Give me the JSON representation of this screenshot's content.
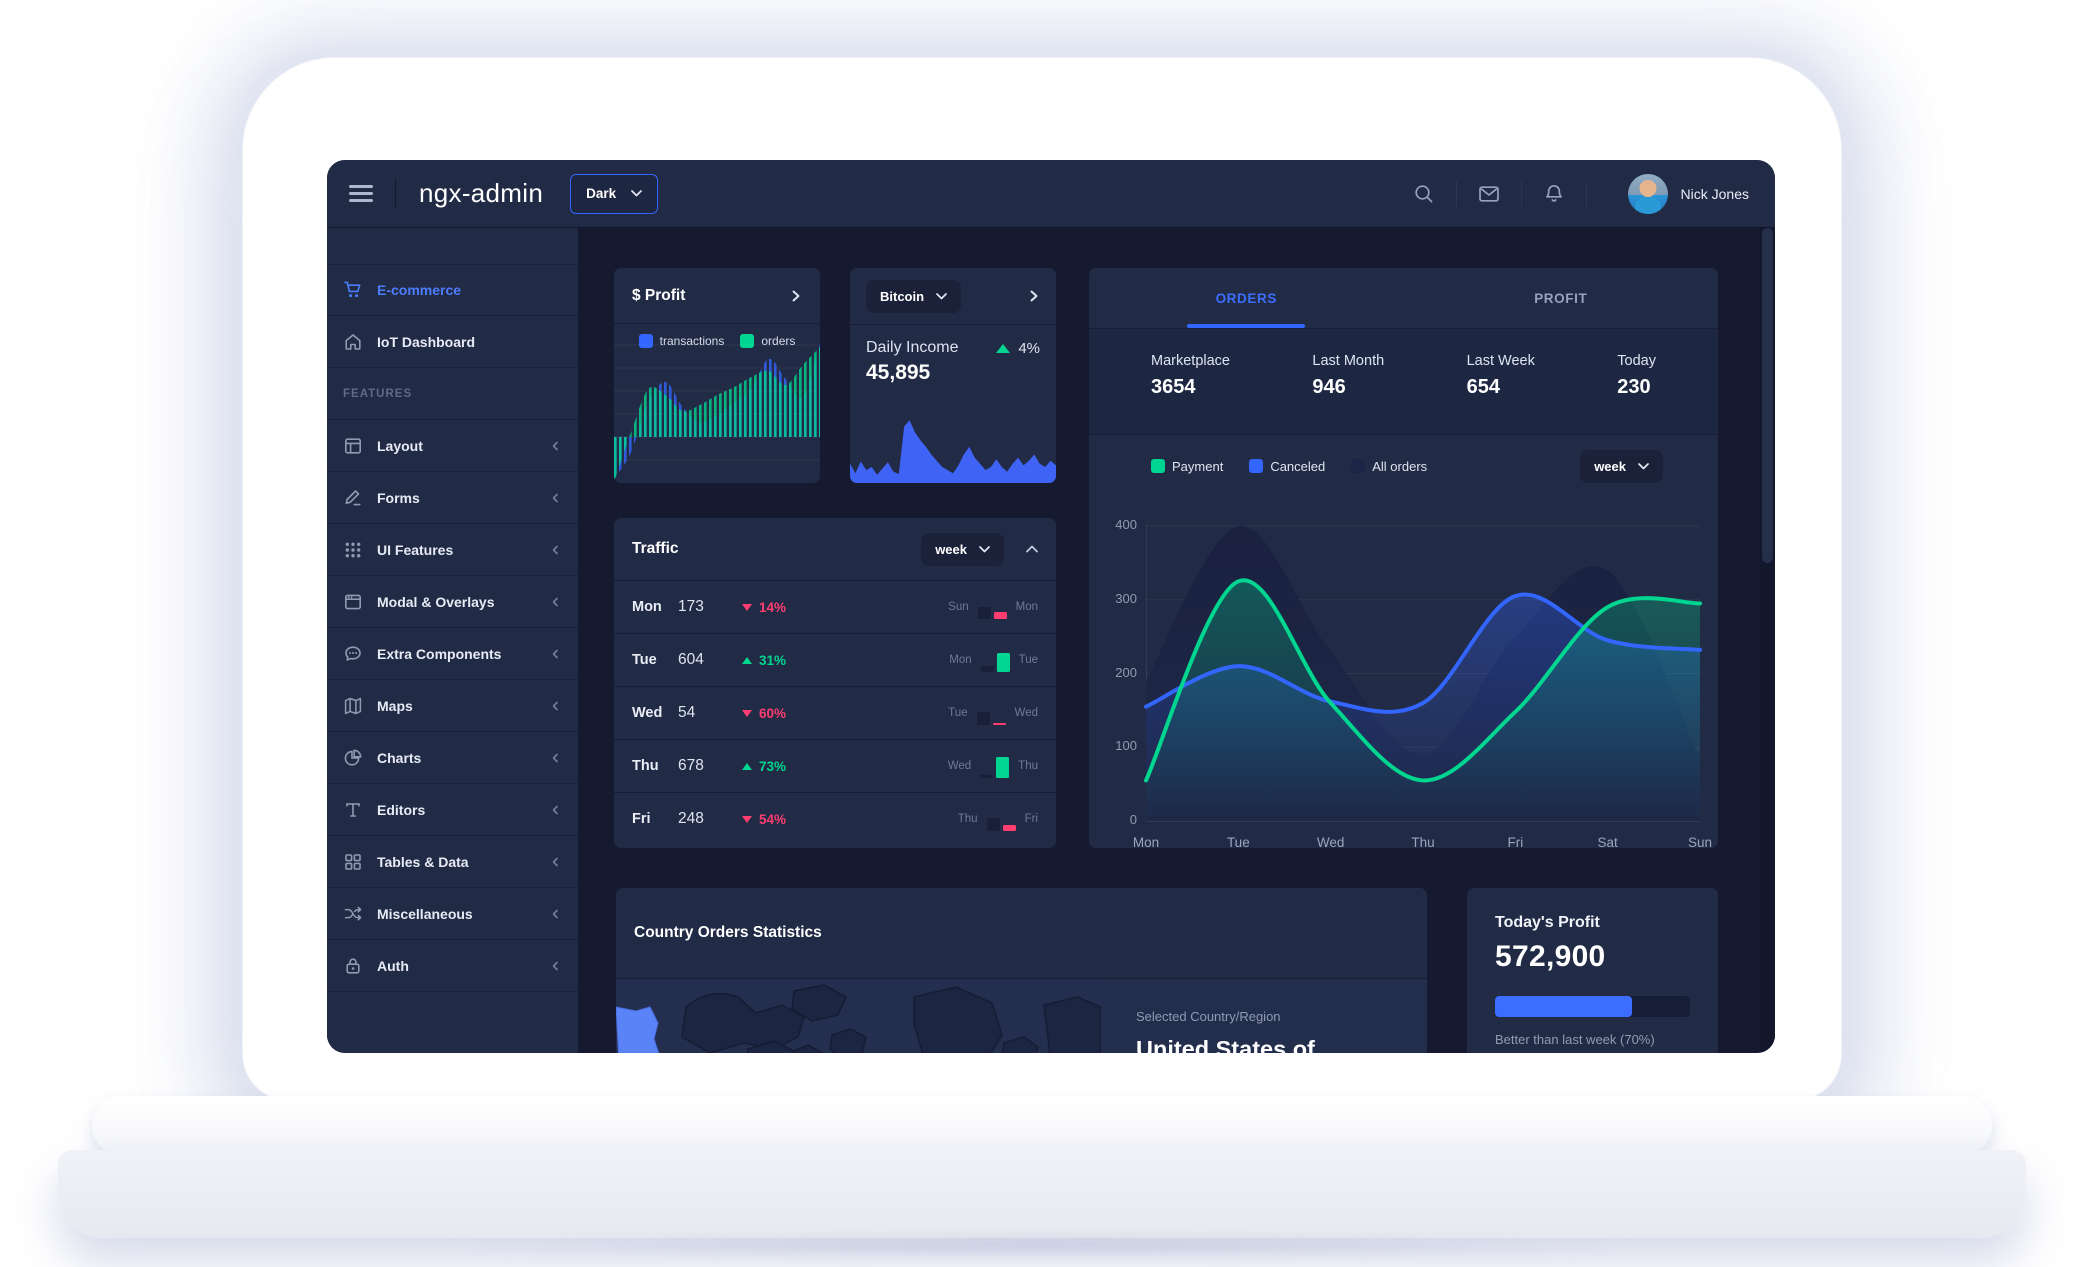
{
  "colors": {
    "primary": "#3366ff",
    "primary_light": "#4d7dff",
    "success": "#00d68f",
    "danger": "#ff3d71",
    "card_bg": "#222b45",
    "layout_bg": "#151a30",
    "hint": "#8f9bb3",
    "all_orders_fill": "#1b2342",
    "map_highlight": "#5b83f8",
    "sparkline_fill": "#3e63f5",
    "prev_bar": "#191f38"
  },
  "header": {
    "brand": "ngx-admin",
    "theme_select": {
      "value": "Dark"
    },
    "icons": [
      {
        "name": "search-icon"
      },
      {
        "name": "email-icon"
      },
      {
        "name": "notifications-icon"
      }
    ],
    "user": {
      "name": "Nick Jones"
    }
  },
  "sidebar": {
    "items": [
      {
        "label": "E-commerce",
        "icon": "cart",
        "selected": true,
        "has_children": false
      },
      {
        "label": "IoT Dashboard",
        "icon": "home",
        "selected": false,
        "has_children": false
      },
      {
        "label": "FEATURES",
        "type": "section"
      },
      {
        "label": "Layout",
        "icon": "layout",
        "has_children": true
      },
      {
        "label": "Forms",
        "icon": "edit",
        "has_children": true
      },
      {
        "label": "UI Features",
        "icon": "keypad",
        "has_children": true
      },
      {
        "label": "Modal & Overlays",
        "icon": "browser",
        "has_children": true
      },
      {
        "label": "Extra Components",
        "icon": "message",
        "has_children": true
      },
      {
        "label": "Maps",
        "icon": "map",
        "has_children": true
      },
      {
        "label": "Charts",
        "icon": "pie",
        "has_children": true
      },
      {
        "label": "Editors",
        "icon": "text",
        "has_children": true
      },
      {
        "label": "Tables & Data",
        "icon": "grid",
        "has_children": true
      },
      {
        "label": "Miscellaneous",
        "icon": "shuffle",
        "has_children": true
      },
      {
        "label": "Auth",
        "icon": "lock",
        "has_children": true
      }
    ]
  },
  "cards": {
    "profit": {
      "title": "$ Profit",
      "legend": [
        {
          "label": "transactions",
          "color": "#3366ff"
        },
        {
          "label": "orders",
          "color": "#00d68f"
        }
      ]
    },
    "bitcoin": {
      "selector": "Bitcoin",
      "metric_label": "Daily Income",
      "metric_value": "45,895",
      "delta": "4%",
      "delta_direction": "up"
    },
    "orders_panel": {
      "tabs": [
        {
          "label": "ORDERS",
          "active": true
        },
        {
          "label": "PROFIT",
          "active": false
        }
      ],
      "stats": [
        {
          "label": "Marketplace",
          "value": "3654"
        },
        {
          "label": "Last Month",
          "value": "946"
        },
        {
          "label": "Last Week",
          "value": "654"
        },
        {
          "label": "Today",
          "value": "230"
        }
      ],
      "legend": [
        {
          "label": "Payment",
          "color": "#00d68f"
        },
        {
          "label": "Canceled",
          "color": "#3366ff"
        },
        {
          "label": "All orders",
          "color": "#1c2546"
        }
      ],
      "period": "week"
    },
    "traffic": {
      "title": "Traffic",
      "period": "week",
      "rows": [
        {
          "day": "Mon",
          "value": "173",
          "pct": "14%",
          "direction": "down",
          "prev_label": "Sun",
          "cur_label": "Mon",
          "prev_bar": 12,
          "cur_bar": 7
        },
        {
          "day": "Tue",
          "value": "604",
          "pct": "31%",
          "direction": "up",
          "prev_label": "Mon",
          "cur_label": "Tue",
          "prev_bar": 6,
          "cur_bar": 19
        },
        {
          "day": "Wed",
          "value": "54",
          "pct": "60%",
          "direction": "down",
          "prev_label": "Tue",
          "cur_label": "Wed",
          "prev_bar": 13,
          "cur_bar": 2
        },
        {
          "day": "Thu",
          "value": "678",
          "pct": "73%",
          "direction": "up",
          "prev_label": "Wed",
          "cur_label": "Thu",
          "prev_bar": 3,
          "cur_bar": 21
        },
        {
          "day": "Fri",
          "value": "248",
          "pct": "54%",
          "direction": "down",
          "prev_label": "Thu",
          "cur_label": "Fri",
          "prev_bar": 13,
          "cur_bar": 6
        }
      ]
    },
    "country": {
      "title": "Country Orders Statistics",
      "selected_label": "Selected Country/Region",
      "selected_value": "United States of America"
    },
    "today_profit": {
      "title": "Today's Profit",
      "value": "572,900",
      "progress_pct": 70,
      "note": "Better than last week (70%)"
    }
  },
  "chart_data": [
    {
      "type": "line",
      "title": "Orders (week)",
      "categories": [
        "Mon",
        "Tue",
        "Wed",
        "Thu",
        "Fri",
        "Sat",
        "Sun"
      ],
      "series": [
        {
          "name": "All orders",
          "color": "#1b2342",
          "values": [
            190,
            400,
            230,
            90,
            250,
            340,
            85
          ]
        },
        {
          "name": "Canceled",
          "color": "#3366ff",
          "values": [
            155,
            210,
            162,
            160,
            305,
            245,
            232
          ]
        },
        {
          "name": "Payment",
          "color": "#00d68f",
          "values": [
            55,
            325,
            160,
            55,
            148,
            290,
            295
          ]
        }
      ],
      "ylim": [
        0,
        400
      ],
      "yticks": [
        0,
        100,
        200,
        300,
        400
      ],
      "grid": true,
      "legend_position": "top"
    },
    {
      "type": "area",
      "title": "Profit (transactions vs orders)",
      "series": [
        {
          "name": "transactions",
          "color": "#3366ff",
          "values": [
            -42,
            -15,
            35,
            55,
            30,
            14,
            22,
            34,
            48,
            78,
            58,
            40,
            93
          ]
        },
        {
          "name": "orders",
          "color": "#00d68f",
          "values": [
            -45,
            5,
            48,
            42,
            26,
            32,
            42,
            50,
            60,
            66,
            52,
            72,
            90
          ]
        }
      ]
    },
    {
      "type": "area",
      "title": "Bitcoin Daily Income",
      "series": [
        {
          "name": "income",
          "color": "#3e63f5",
          "values": [
            22,
            10,
            25,
            14,
            18,
            8,
            16,
            24,
            12,
            9,
            70,
            78,
            62,
            52,
            44,
            34,
            26,
            18,
            14,
            10,
            20,
            34,
            44,
            30,
            22,
            14,
            18,
            28,
            18,
            12,
            22,
            30,
            20,
            26,
            34,
            22,
            18,
            26,
            20
          ]
        }
      ]
    },
    {
      "type": "bar",
      "title": "Traffic (week)",
      "categories": [
        "Mon",
        "Tue",
        "Wed",
        "Thu",
        "Fri"
      ],
      "values": [
        173,
        604,
        54,
        678,
        248
      ],
      "change_pct": [
        -14,
        31,
        -60,
        73,
        -54
      ]
    }
  ]
}
